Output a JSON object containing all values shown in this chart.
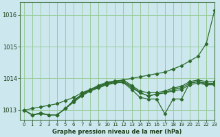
{
  "title": "Graphe pression niveau de la mer (hPa)",
  "bg_color": "#cce8ee",
  "grid_color": "#99cc99",
  "line_color": "#2d6b2d",
  "xlim": [
    -0.5,
    23
  ],
  "ylim": [
    1012.7,
    1016.4
  ],
  "yticks": [
    1013,
    1014,
    1015,
    1016
  ],
  "xticks": [
    0,
    1,
    2,
    3,
    4,
    5,
    6,
    7,
    8,
    9,
    10,
    11,
    12,
    13,
    14,
    15,
    16,
    17,
    18,
    19,
    20,
    21,
    22,
    23
  ],
  "lines": [
    [
      1013.0,
      1013.05,
      1013.1,
      1013.15,
      1013.2,
      1013.3,
      1013.4,
      1013.55,
      1013.65,
      1013.75,
      1013.85,
      1013.9,
      1013.95,
      1014.0,
      1014.05,
      1014.1,
      1014.15,
      1014.2,
      1014.3,
      1014.4,
      1014.55,
      1014.7,
      1015.1,
      1016.15
    ],
    [
      1013.0,
      1012.85,
      1012.9,
      1012.85,
      1012.85,
      1013.05,
      1013.3,
      1013.5,
      1013.65,
      1013.75,
      1013.85,
      1013.9,
      1013.9,
      1013.7,
      1013.55,
      1013.45,
      1013.5,
      1013.55,
      1013.65,
      1013.7,
      1013.85,
      1013.9,
      1013.85,
      1013.85
    ],
    [
      1013.0,
      1012.85,
      1012.9,
      1012.85,
      1012.85,
      1013.05,
      1013.25,
      1013.45,
      1013.6,
      1013.7,
      1013.8,
      1013.85,
      1013.9,
      1013.75,
      1013.55,
      1013.45,
      1013.5,
      1013.55,
      1013.6,
      1013.65,
      1013.8,
      1013.85,
      1013.8,
      1013.8
    ],
    [
      1013.0,
      1012.85,
      1012.88,
      1012.85,
      1012.85,
      1013.05,
      1013.28,
      1013.48,
      1013.62,
      1013.72,
      1013.82,
      1013.87,
      1013.87,
      1013.65,
      1013.4,
      1013.35,
      1013.35,
      1012.88,
      1013.35,
      1013.35,
      1013.85,
      1013.9,
      1013.82,
      1013.82
    ],
    [
      1013.0,
      1012.85,
      1012.9,
      1012.85,
      1012.85,
      1013.05,
      1013.3,
      1013.5,
      1013.65,
      1013.78,
      1013.88,
      1013.92,
      1013.95,
      1013.78,
      1013.6,
      1013.55,
      1013.55,
      1013.6,
      1013.7,
      1013.75,
      1013.9,
      1013.95,
      1013.9,
      1013.9
    ]
  ]
}
